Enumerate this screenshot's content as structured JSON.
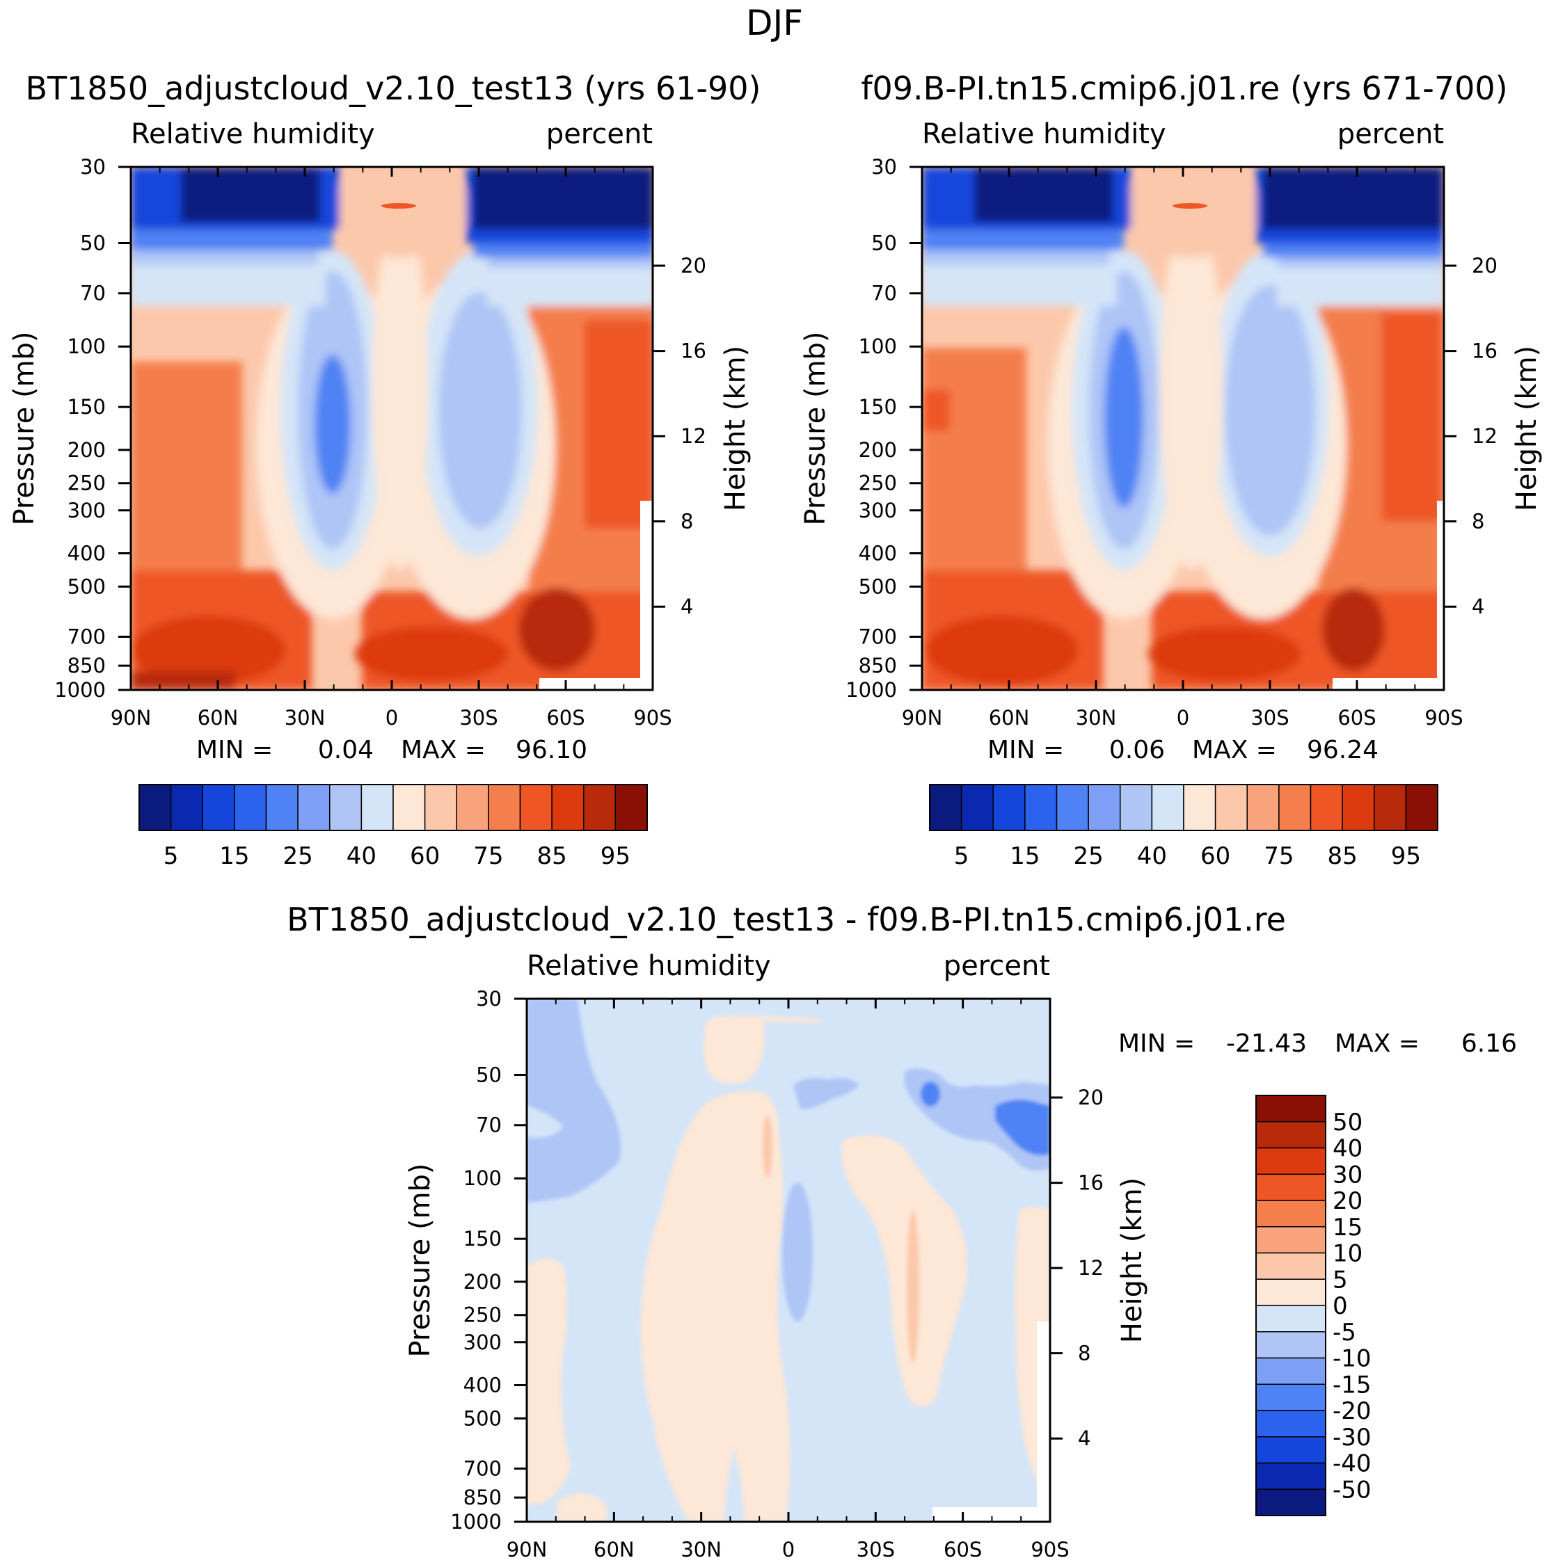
{
  "chart_data": {
    "type": "heatmap",
    "title": "DJF",
    "panels": [
      {
        "id": "test",
        "case": "BT1850_adjustcloud_v2.10_test13 (yrs 61-90)",
        "variable": "Relative humidity",
        "units": "percent",
        "ylabel": "Pressure (mb)",
        "ylabel_right": "Height (km)",
        "x_ticks": [
          "90N",
          "60N",
          "30N",
          "0",
          "30S",
          "60S",
          "90S"
        ],
        "y_ticks": [
          "30",
          "50",
          "70",
          "100",
          "150",
          "200",
          "250",
          "300",
          "400",
          "500",
          "700",
          "850",
          "1000"
        ],
        "height_ticks": [
          "20",
          "16",
          "12",
          "8",
          "4"
        ],
        "min_label": "MIN =",
        "min": "0.04",
        "max_label": "MAX =",
        "max": "96.10",
        "levels": [
          5,
          10,
          15,
          20,
          25,
          30,
          40,
          50,
          60,
          70,
          75,
          80,
          85,
          90,
          95
        ],
        "level_labels": [
          "5",
          "15",
          "25",
          "40",
          "60",
          "75",
          "85",
          "95"
        ]
      },
      {
        "id": "control",
        "case": "f09.B-PI.tn15.cmip6.j01.re (yrs 671-700)",
        "variable": "Relative humidity",
        "units": "percent",
        "ylabel": "Pressure (mb)",
        "ylabel_right": "Height (km)",
        "x_ticks": [
          "90N",
          "60N",
          "30N",
          "0",
          "30S",
          "60S",
          "90S"
        ],
        "y_ticks": [
          "30",
          "50",
          "70",
          "100",
          "150",
          "200",
          "250",
          "300",
          "400",
          "500",
          "700",
          "850",
          "1000"
        ],
        "height_ticks": [
          "20",
          "16",
          "12",
          "8",
          "4"
        ],
        "min_label": "MIN =",
        "min": "0.06",
        "max_label": "MAX =",
        "max": "96.24",
        "levels": [
          5,
          10,
          15,
          20,
          25,
          30,
          40,
          50,
          60,
          70,
          75,
          80,
          85,
          90,
          95
        ],
        "level_labels": [
          "5",
          "15",
          "25",
          "40",
          "60",
          "75",
          "85",
          "95"
        ]
      },
      {
        "id": "difference",
        "case": "BT1850_adjustcloud_v2.10_test13 - f09.B-PI.tn15.cmip6.j01.re",
        "variable": "Relative humidity",
        "units": "percent",
        "ylabel": "Pressure (mb)",
        "ylabel_right": "Height (km)",
        "x_ticks": [
          "90N",
          "60N",
          "30N",
          "0",
          "30S",
          "60S",
          "90S"
        ],
        "y_ticks": [
          "30",
          "50",
          "70",
          "100",
          "150",
          "200",
          "250",
          "300",
          "400",
          "500",
          "700",
          "850",
          "1000"
        ],
        "height_ticks": [
          "20",
          "16",
          "12",
          "8",
          "4"
        ],
        "min_label": "MIN =",
        "min": "-21.43",
        "max_label": "MAX =",
        "max": "6.16",
        "level_labels": [
          "50",
          "40",
          "30",
          "20",
          "15",
          "10",
          "5",
          "0",
          "-5",
          "-10",
          "-15",
          "-20",
          "-30",
          "-40",
          "-50"
        ]
      }
    ],
    "colorbar_main": [
      "#0b1a7f",
      "#0a28b0",
      "#1446dc",
      "#2b62ee",
      "#4f82f4",
      "#7d9ff5",
      "#aec5f6",
      "#d4e5f8",
      "#fde7d6",
      "#fcc8ac",
      "#f9a37c",
      "#f47e4c",
      "#ee5625",
      "#dd3a10",
      "#b82a0a",
      "#8a1006"
    ],
    "colorbar_diff": [
      "#8a1006",
      "#b82a0a",
      "#dd3a10",
      "#ee5625",
      "#f47e4c",
      "#f9a37c",
      "#fcc8ac",
      "#fde7d6",
      "#d4e5f8",
      "#aec5f6",
      "#7d9ff5",
      "#4f82f4",
      "#2b62ee",
      "#1446dc",
      "#0a28b0",
      "#0b1a7f"
    ]
  }
}
